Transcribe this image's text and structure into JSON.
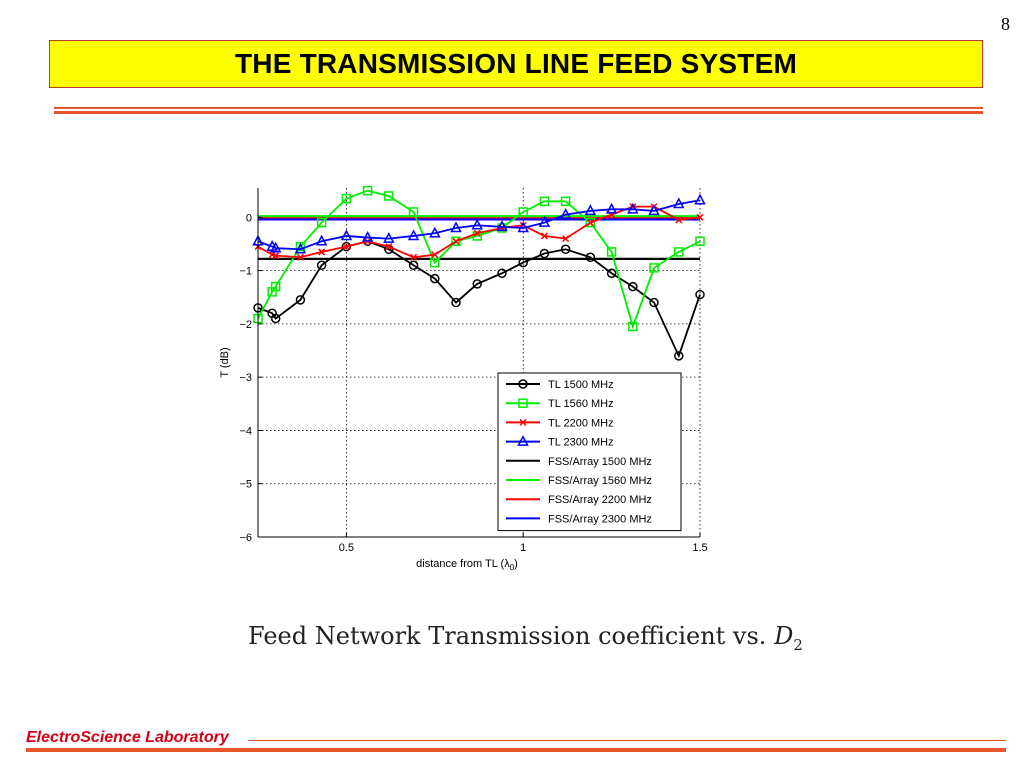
{
  "slide": {
    "page_number": "8",
    "title": "THE TRANSMISSION LINE FEED SYSTEM",
    "footer": "ElectroScience Laboratory"
  },
  "caption": {
    "text": "Feed Network Transmission coefficient vs.",
    "variable": "D",
    "variable_sub": "2"
  },
  "colors": {
    "title_bg": "#ffff00",
    "accent_rule": "#e8552a",
    "footer_text": "#d4001a",
    "black": "#000000",
    "green": "#00ee00",
    "red": "#ff0000",
    "blue": "#0000ff"
  },
  "chart_data": {
    "type": "line",
    "xlabel": "distance from TL (λ",
    "xlabel_sub": "0",
    "xlabel_end": ")",
    "ylabel": "T (dB)",
    "xlim": [
      0.25,
      1.5
    ],
    "ylim": [
      -6,
      0.55
    ],
    "x_ticks": [
      0.5,
      1,
      1.5
    ],
    "x_tick_labels": [
      "0.5",
      "1",
      "1.5"
    ],
    "y_ticks": [
      0,
      -1,
      -2,
      -3,
      -4,
      -5,
      -6
    ],
    "y_tick_labels": [
      "0",
      "−1",
      "−2",
      "−3",
      "−4",
      "−5",
      "−6"
    ],
    "grid": "dotted",
    "legend_position": "lower-right",
    "series": [
      {
        "name": "TL 1500 MHz",
        "color": "#000000",
        "marker": "circle",
        "x": [
          0.25,
          0.29,
          0.3,
          0.37,
          0.43,
          0.5,
          0.56,
          0.62,
          0.69,
          0.75,
          0.81,
          0.87,
          0.94,
          1.0,
          1.06,
          1.12,
          1.19,
          1.25,
          1.31,
          1.37,
          1.44,
          1.5
        ],
        "y": [
          -1.7,
          -1.8,
          -1.9,
          -1.55,
          -0.9,
          -0.55,
          -0.45,
          -0.6,
          -0.9,
          -1.15,
          -1.6,
          -1.25,
          -1.05,
          -0.85,
          -0.68,
          -0.6,
          -0.75,
          -1.05,
          -1.3,
          -1.6,
          -2.6,
          -1.45
        ]
      },
      {
        "name": "TL 1560 MHz",
        "color": "#00ee00",
        "marker": "square",
        "x": [
          0.25,
          0.29,
          0.3,
          0.37,
          0.43,
          0.5,
          0.56,
          0.62,
          0.69,
          0.75,
          0.81,
          0.87,
          0.94,
          1.0,
          1.06,
          1.12,
          1.19,
          1.25,
          1.31,
          1.37,
          1.44,
          1.5
        ],
        "y": [
          -1.9,
          -1.4,
          -1.3,
          -0.55,
          -0.1,
          0.35,
          0.5,
          0.4,
          0.1,
          -0.85,
          -0.45,
          -0.35,
          -0.2,
          0.1,
          0.3,
          0.3,
          -0.1,
          -0.65,
          -2.05,
          -0.95,
          -0.65,
          -0.45
        ]
      },
      {
        "name": "TL 2200 MHz",
        "color": "#ff0000",
        "marker": "x",
        "x": [
          0.25,
          0.29,
          0.3,
          0.37,
          0.43,
          0.5,
          0.56,
          0.62,
          0.69,
          0.75,
          0.81,
          0.87,
          0.94,
          1.0,
          1.06,
          1.12,
          1.19,
          1.25,
          1.31,
          1.37,
          1.44,
          1.5
        ],
        "y": [
          -0.55,
          -0.7,
          -0.72,
          -0.75,
          -0.65,
          -0.55,
          -0.45,
          -0.55,
          -0.75,
          -0.7,
          -0.45,
          -0.3,
          -0.2,
          -0.15,
          -0.35,
          -0.4,
          -0.1,
          0.05,
          0.2,
          0.2,
          -0.05,
          0.0
        ]
      },
      {
        "name": "TL 2300 MHz",
        "color": "#0000ff",
        "marker": "triangle",
        "x": [
          0.25,
          0.29,
          0.3,
          0.37,
          0.43,
          0.5,
          0.56,
          0.62,
          0.69,
          0.75,
          0.81,
          0.87,
          0.94,
          1.0,
          1.06,
          1.12,
          1.19,
          1.25,
          1.31,
          1.37,
          1.44,
          1.5
        ],
        "y": [
          -0.45,
          -0.55,
          -0.58,
          -0.6,
          -0.45,
          -0.35,
          -0.38,
          -0.4,
          -0.35,
          -0.3,
          -0.2,
          -0.15,
          -0.18,
          -0.2,
          -0.1,
          0.05,
          0.12,
          0.15,
          0.15,
          0.12,
          0.25,
          0.32
        ]
      },
      {
        "name": "FSS/Array 1500 MHz",
        "color": "#000000",
        "marker": "none",
        "constant": -0.78
      },
      {
        "name": "FSS/Array 1560 MHz",
        "color": "#00ee00",
        "marker": "none",
        "constant": 0.02
      },
      {
        "name": "FSS/Array 2200 MHz",
        "color": "#ff0000",
        "marker": "none",
        "constant": -0.02
      },
      {
        "name": "FSS/Array 2300 MHz",
        "color": "#0000ff",
        "marker": "none",
        "constant": -0.04
      }
    ]
  }
}
